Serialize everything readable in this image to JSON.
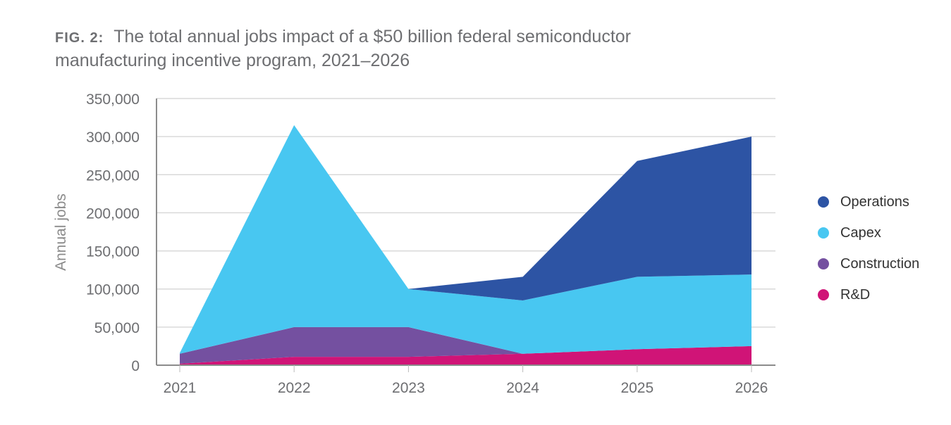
{
  "title": {
    "fig_label": "FIG. 2:",
    "text": "The total annual jobs impact of a $50 billion federal semiconductor manufacturing incentive program, 2021–2026"
  },
  "chart_data": {
    "type": "area",
    "stacked": true,
    "title": "The total annual jobs impact of a $50 billion federal semiconductor manufacturing incentive program, 2021–2026",
    "xlabel": "",
    "ylabel": "Annual jobs",
    "categories": [
      "2021",
      "2022",
      "2023",
      "2024",
      "2025",
      "2026"
    ],
    "ylim": [
      0,
      350000
    ],
    "yticks": [
      "0",
      "50,000",
      "100,000",
      "150,000",
      "200,000",
      "250,000",
      "300,000",
      "350,000"
    ],
    "ytick_values": [
      0,
      50000,
      100000,
      150000,
      200000,
      250000,
      300000,
      350000
    ],
    "grid": true,
    "legend_placement": "right",
    "series": [
      {
        "name": "R&D",
        "color": "#d01477",
        "values": [
          2000,
          11000,
          11000,
          15000,
          21000,
          25000
        ]
      },
      {
        "name": "Construction",
        "color": "#7450a0",
        "values": [
          13000,
          39000,
          39000,
          0,
          0,
          0
        ]
      },
      {
        "name": "Capex",
        "color": "#48c7f1",
        "values": [
          1000,
          265000,
          50000,
          70000,
          95000,
          94000
        ]
      },
      {
        "name": "Operations",
        "color": "#2d54a4",
        "values": [
          0,
          0,
          0,
          31000,
          152000,
          181000
        ]
      }
    ],
    "legend_order": [
      "Operations",
      "Capex",
      "Construction",
      "R&D"
    ]
  }
}
